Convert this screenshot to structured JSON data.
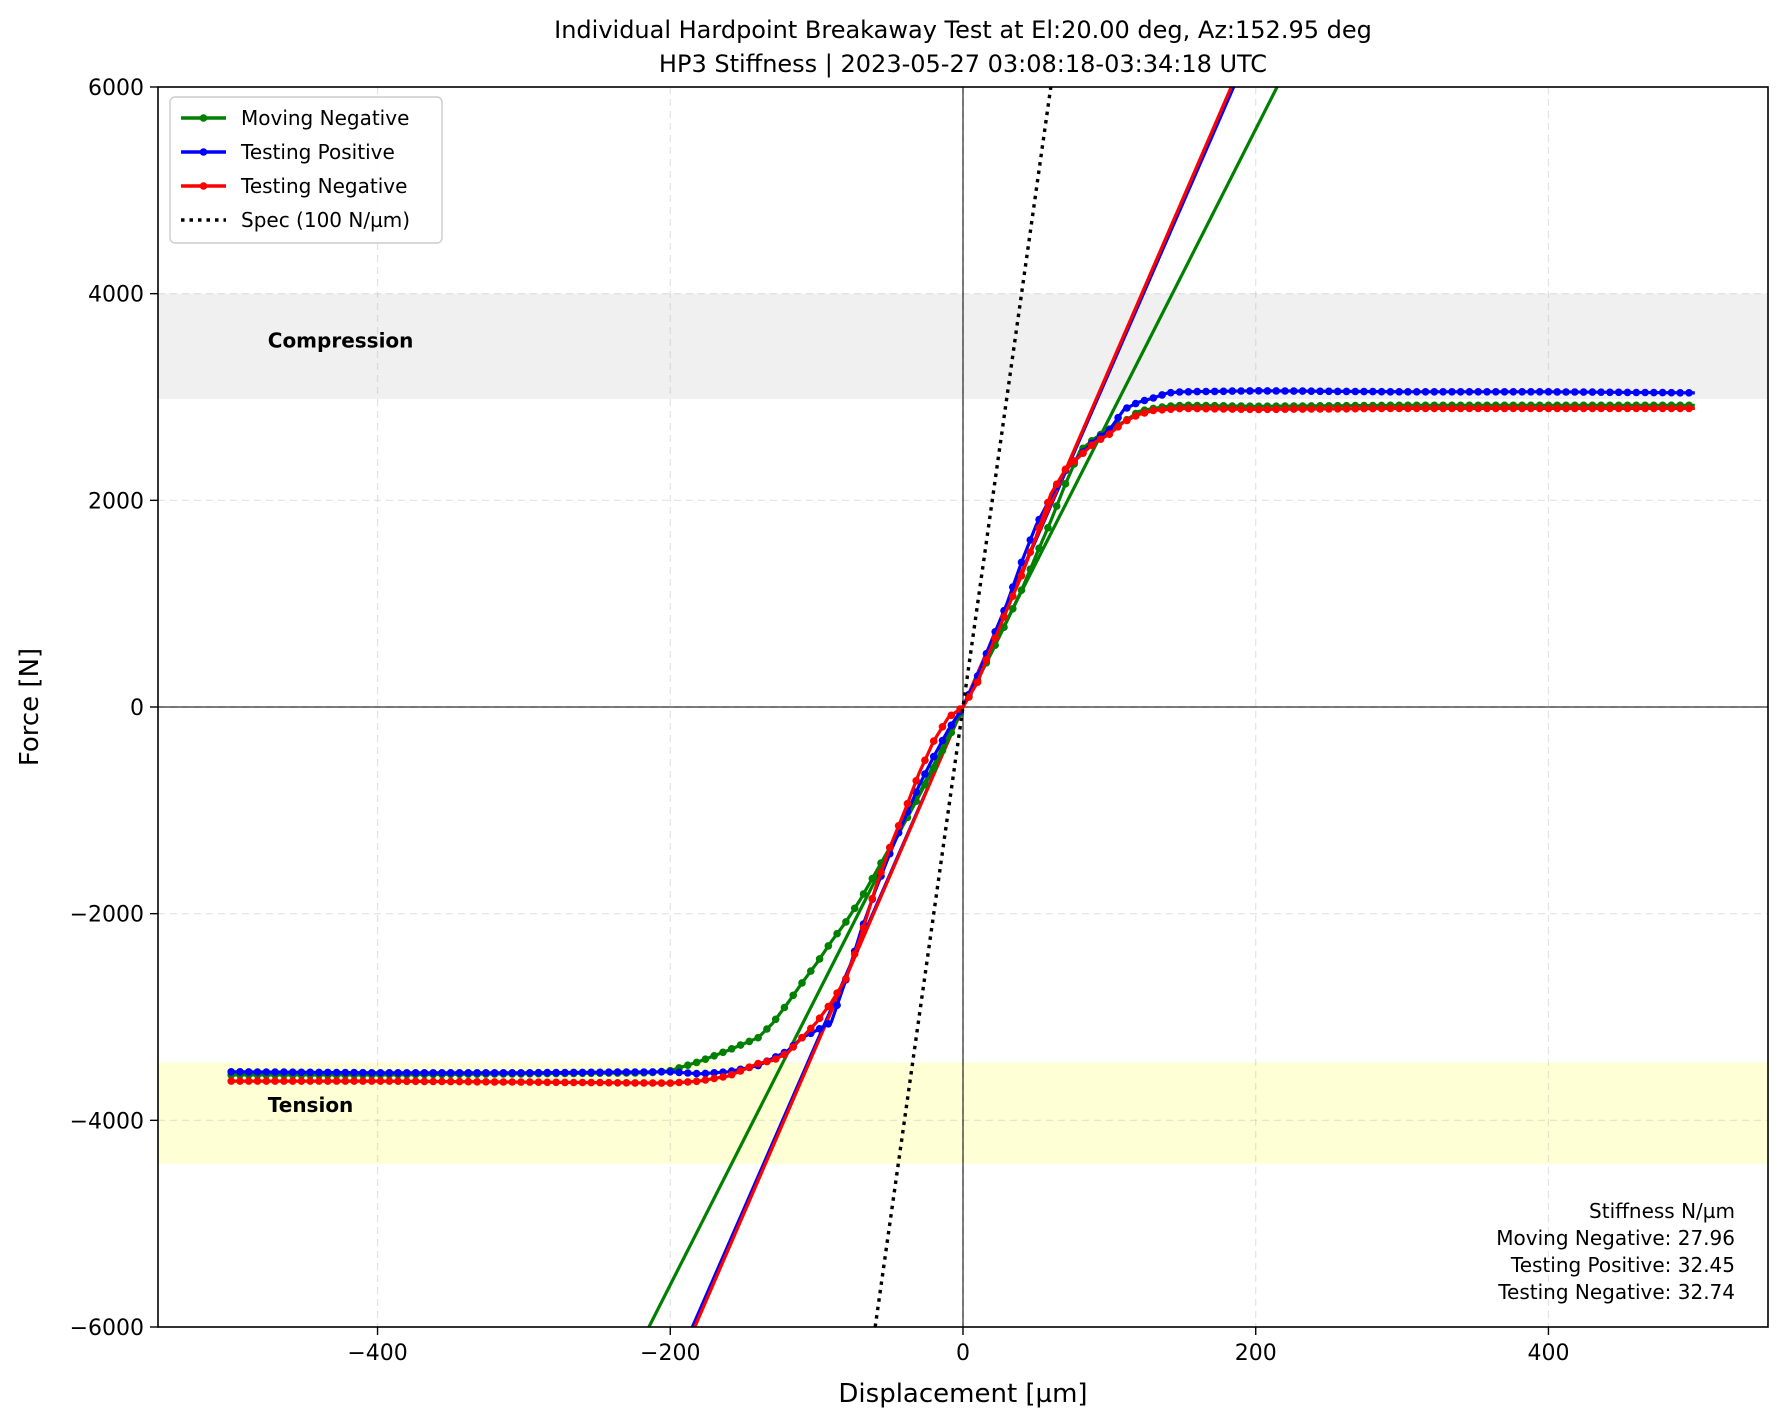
{
  "chart_data": {
    "type": "line",
    "title": "Individual Hardpoint Breakaway Test at El:20.00 deg, Az:152.95 deg",
    "subtitle": "HP3 Stiffness | 2023-05-27 03:08:18-03:34:18 UTC",
    "xlabel": "Displacement [µm]",
    "ylabel": "Force [N]",
    "xlim": [
      -550,
      550
    ],
    "ylim": [
      -6000,
      6000
    ],
    "x_ticks": [
      -400,
      -200,
      0,
      200,
      400
    ],
    "y_ticks": [
      -6000,
      -4000,
      -2000,
      0,
      2000,
      4000,
      6000
    ],
    "x_tick_labels": [
      "−400",
      "−200",
      "0",
      "200",
      "400"
    ],
    "y_tick_labels": [
      "−6000",
      "−4000",
      "−2000",
      "0",
      "2000",
      "4000",
      "6000"
    ],
    "grid": true,
    "legend_location": "top-left",
    "bands": [
      {
        "label": "Compression",
        "y_from": 2980,
        "y_to": 4000,
        "color": "#f0f0f0"
      },
      {
        "label": "Tension",
        "y_from": -4420,
        "y_to": -3440,
        "color": "#ffffd5"
      }
    ],
    "series": [
      {
        "name": "Moving Negative",
        "color": "#008000",
        "marker": "dot",
        "stiffness": 27.96,
        "x": [
          -500,
          -400,
          -300,
          -215,
          -200,
          -180,
          -160,
          -140,
          -130,
          -120,
          -110,
          -100,
          -90,
          -80,
          -70,
          -60,
          -50,
          -40,
          -30,
          -20,
          -10,
          0,
          10,
          20,
          30,
          40,
          50,
          60,
          70,
          80,
          90,
          100,
          110,
          120,
          130,
          140,
          150,
          200,
          300,
          400,
          500
        ],
        "y": [
          -3560,
          -3560,
          -3550,
          -3540,
          -3520,
          -3430,
          -3320,
          -3200,
          -3060,
          -2870,
          -2670,
          -2480,
          -2270,
          -2080,
          -1860,
          -1610,
          -1360,
          -1120,
          -860,
          -590,
          -310,
          0,
          260,
          540,
          830,
          1130,
          1470,
          1800,
          2160,
          2480,
          2600,
          2690,
          2760,
          2860,
          2890,
          2910,
          2920,
          2910,
          2920,
          2920,
          2920
        ]
      },
      {
        "name": "Testing Positive",
        "color": "#0000ff",
        "marker": "dot",
        "stiffness": 32.45,
        "x": [
          -500,
          -400,
          -300,
          -200,
          -180,
          -160,
          -140,
          -120,
          -110,
          -100,
          -90,
          -80,
          -70,
          -60,
          -50,
          -40,
          -30,
          -20,
          -10,
          0,
          10,
          20,
          30,
          40,
          50,
          60,
          70,
          80,
          90,
          100,
          110,
          120,
          130,
          140,
          150,
          200,
          300,
          400,
          500
        ],
        "y": [
          -3530,
          -3540,
          -3540,
          -3530,
          -3550,
          -3530,
          -3470,
          -3330,
          -3200,
          -3130,
          -3050,
          -2640,
          -2180,
          -1780,
          -1420,
          -1080,
          -760,
          -480,
          -220,
          0,
          300,
          660,
          1000,
          1400,
          1760,
          2030,
          2290,
          2440,
          2580,
          2680,
          2880,
          2950,
          2990,
          3040,
          3050,
          3060,
          3050,
          3050,
          3040
        ]
      },
      {
        "name": "Testing Negative",
        "color": "#ff0000",
        "marker": "dot",
        "stiffness": 32.74,
        "x": [
          -500,
          -400,
          -300,
          -200,
          -180,
          -160,
          -140,
          -130,
          -120,
          -110,
          -100,
          -90,
          -80,
          -70,
          -60,
          -50,
          -40,
          -30,
          -20,
          -10,
          0,
          10,
          20,
          30,
          40,
          50,
          60,
          70,
          80,
          90,
          100,
          110,
          120,
          130,
          140,
          150,
          200,
          300,
          400,
          500
        ],
        "y": [
          -3620,
          -3620,
          -3630,
          -3640,
          -3620,
          -3570,
          -3450,
          -3420,
          -3350,
          -3200,
          -3050,
          -2860,
          -2630,
          -2230,
          -1760,
          -1360,
          -1010,
          -640,
          -330,
          -100,
          0,
          240,
          600,
          940,
          1270,
          1650,
          2060,
          2300,
          2430,
          2560,
          2640,
          2760,
          2830,
          2870,
          2880,
          2890,
          2880,
          2890,
          2890,
          2890
        ]
      },
      {
        "name": "Spec (100 N/µm)",
        "color": "#000000",
        "style": "dotted",
        "slope": 100
      }
    ],
    "fit_lines": [
      {
        "series": "Moving Negative",
        "color": "#008000",
        "slope": 27.96,
        "intercept": 0
      },
      {
        "series": "Testing Positive",
        "color": "#0000ff",
        "slope": 32.45,
        "intercept": 0
      },
      {
        "series": "Testing Negative",
        "color": "#ff0000",
        "slope": 32.74,
        "intercept": 0
      }
    ],
    "annotations": [
      {
        "text": "Compression",
        "x": -475,
        "y": 3480,
        "weight": "bold"
      },
      {
        "text": "Tension",
        "x": -475,
        "y": -3920,
        "weight": "bold"
      }
    ],
    "stiffness_box": {
      "title": "Stiffness N/µm",
      "lines": [
        "Moving Negative: 27.96",
        "Testing Positive: 32.45",
        "Testing Negative: 32.74"
      ]
    }
  }
}
